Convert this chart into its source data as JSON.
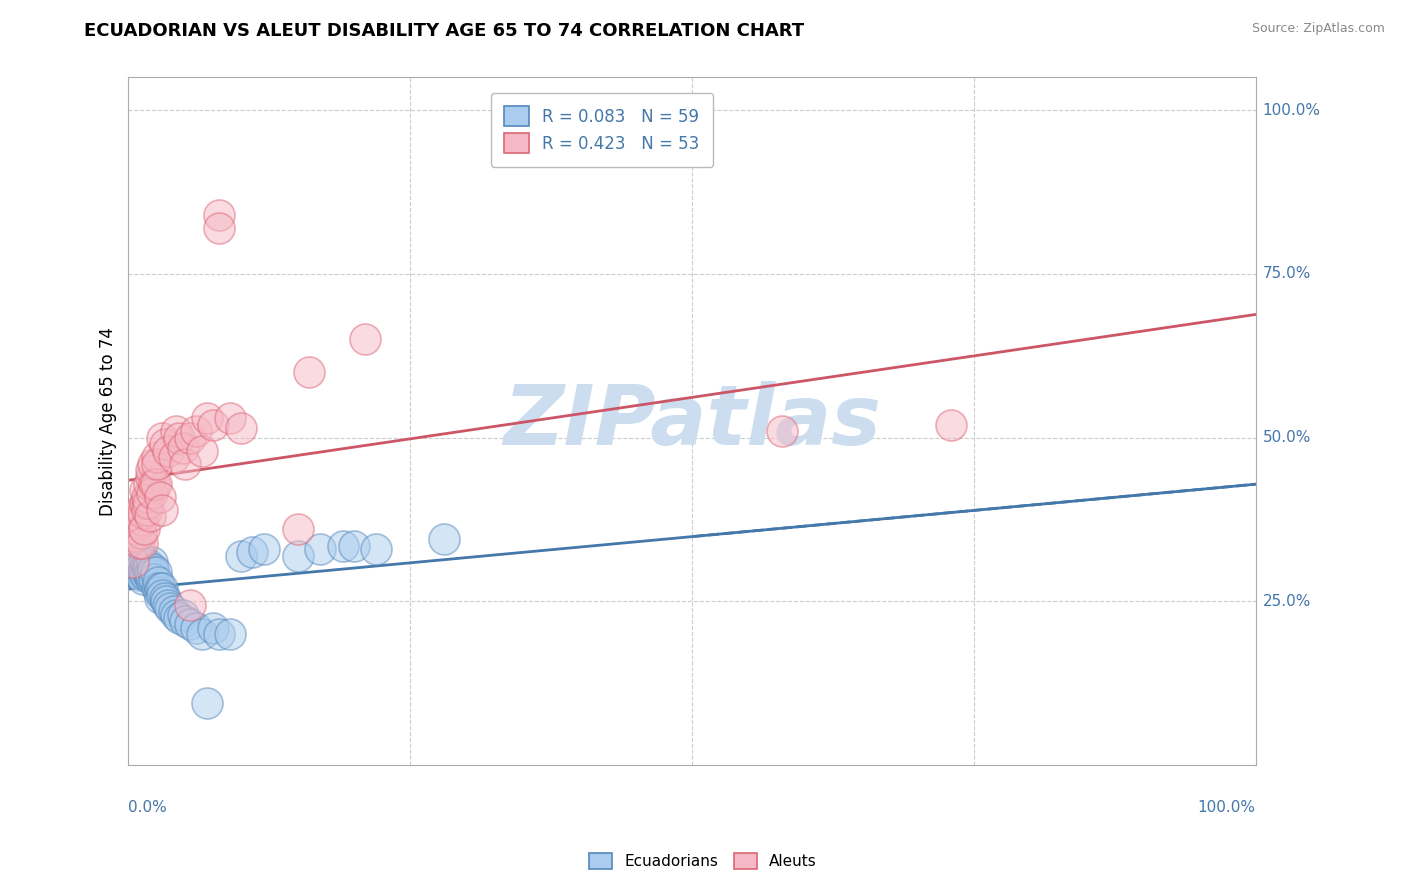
{
  "title": "ECUADORIAN VS ALEUT DISABILITY AGE 65 TO 74 CORRELATION CHART",
  "source": "Source: ZipAtlas.com",
  "ylabel": "Disability Age 65 to 74",
  "x_min": 0.0,
  "x_max": 1.0,
  "y_min": 0.0,
  "y_max": 1.05,
  "blue_R": 0.083,
  "blue_N": 59,
  "pink_R": 0.423,
  "pink_N": 53,
  "blue_color": "#aaccee",
  "pink_color": "#f5b8c4",
  "blue_edge_color": "#5588bb",
  "pink_edge_color": "#dd6677",
  "blue_trend_color": "#4477aa",
  "pink_trend_color": "#cc5566",
  "grid_color": "#cccccc",
  "watermark_color": "#ccddf0",
  "blue_scatter": [
    [
      0.005,
      0.295
    ],
    [
      0.006,
      0.31
    ],
    [
      0.007,
      0.3
    ],
    [
      0.008,
      0.295
    ],
    [
      0.01,
      0.32
    ],
    [
      0.01,
      0.29
    ],
    [
      0.011,
      0.31
    ],
    [
      0.012,
      0.305
    ],
    [
      0.013,
      0.295
    ],
    [
      0.013,
      0.285
    ],
    [
      0.014,
      0.3
    ],
    [
      0.014,
      0.295
    ],
    [
      0.015,
      0.29
    ],
    [
      0.015,
      0.31
    ],
    [
      0.016,
      0.295
    ],
    [
      0.016,
      0.305
    ],
    [
      0.017,
      0.3
    ],
    [
      0.018,
      0.305
    ],
    [
      0.018,
      0.29
    ],
    [
      0.019,
      0.295
    ],
    [
      0.02,
      0.285
    ],
    [
      0.02,
      0.29
    ],
    [
      0.021,
      0.31
    ],
    [
      0.022,
      0.295
    ],
    [
      0.022,
      0.3
    ],
    [
      0.023,
      0.285
    ],
    [
      0.024,
      0.295
    ],
    [
      0.025,
      0.27
    ],
    [
      0.026,
      0.28
    ],
    [
      0.027,
      0.265
    ],
    [
      0.028,
      0.255
    ],
    [
      0.028,
      0.27
    ],
    [
      0.03,
      0.27
    ],
    [
      0.03,
      0.26
    ],
    [
      0.032,
      0.255
    ],
    [
      0.033,
      0.25
    ],
    [
      0.035,
      0.245
    ],
    [
      0.037,
      0.24
    ],
    [
      0.04,
      0.235
    ],
    [
      0.042,
      0.23
    ],
    [
      0.045,
      0.225
    ],
    [
      0.048,
      0.23
    ],
    [
      0.05,
      0.22
    ],
    [
      0.055,
      0.215
    ],
    [
      0.06,
      0.21
    ],
    [
      0.065,
      0.2
    ],
    [
      0.07,
      0.095
    ],
    [
      0.075,
      0.21
    ],
    [
      0.08,
      0.2
    ],
    [
      0.09,
      0.2
    ],
    [
      0.1,
      0.32
    ],
    [
      0.11,
      0.325
    ],
    [
      0.12,
      0.33
    ],
    [
      0.15,
      0.32
    ],
    [
      0.17,
      0.33
    ],
    [
      0.19,
      0.335
    ],
    [
      0.2,
      0.335
    ],
    [
      0.22,
      0.33
    ],
    [
      0.28,
      0.345
    ]
  ],
  "pink_scatter": [
    [
      0.004,
      0.31
    ],
    [
      0.005,
      0.38
    ],
    [
      0.006,
      0.35
    ],
    [
      0.007,
      0.36
    ],
    [
      0.008,
      0.38
    ],
    [
      0.009,
      0.34
    ],
    [
      0.01,
      0.37
    ],
    [
      0.01,
      0.39
    ],
    [
      0.011,
      0.355
    ],
    [
      0.012,
      0.375
    ],
    [
      0.012,
      0.34
    ],
    [
      0.013,
      0.385
    ],
    [
      0.014,
      0.36
    ],
    [
      0.015,
      0.4
    ],
    [
      0.015,
      0.42
    ],
    [
      0.016,
      0.39
    ],
    [
      0.016,
      0.41
    ],
    [
      0.017,
      0.4
    ],
    [
      0.018,
      0.43
    ],
    [
      0.019,
      0.38
    ],
    [
      0.02,
      0.44
    ],
    [
      0.02,
      0.45
    ],
    [
      0.021,
      0.415
    ],
    [
      0.022,
      0.46
    ],
    [
      0.023,
      0.43
    ],
    [
      0.024,
      0.43
    ],
    [
      0.025,
      0.47
    ],
    [
      0.025,
      0.46
    ],
    [
      0.028,
      0.41
    ],
    [
      0.03,
      0.39
    ],
    [
      0.03,
      0.5
    ],
    [
      0.032,
      0.49
    ],
    [
      0.035,
      0.48
    ],
    [
      0.04,
      0.47
    ],
    [
      0.042,
      0.51
    ],
    [
      0.045,
      0.5
    ],
    [
      0.048,
      0.485
    ],
    [
      0.05,
      0.46
    ],
    [
      0.055,
      0.5
    ],
    [
      0.055,
      0.245
    ],
    [
      0.06,
      0.51
    ],
    [
      0.065,
      0.48
    ],
    [
      0.07,
      0.53
    ],
    [
      0.075,
      0.52
    ],
    [
      0.08,
      0.84
    ],
    [
      0.08,
      0.82
    ],
    [
      0.09,
      0.53
    ],
    [
      0.1,
      0.515
    ],
    [
      0.15,
      0.36
    ],
    [
      0.16,
      0.6
    ],
    [
      0.21,
      0.65
    ],
    [
      0.58,
      0.51
    ],
    [
      0.73,
      0.52
    ]
  ]
}
